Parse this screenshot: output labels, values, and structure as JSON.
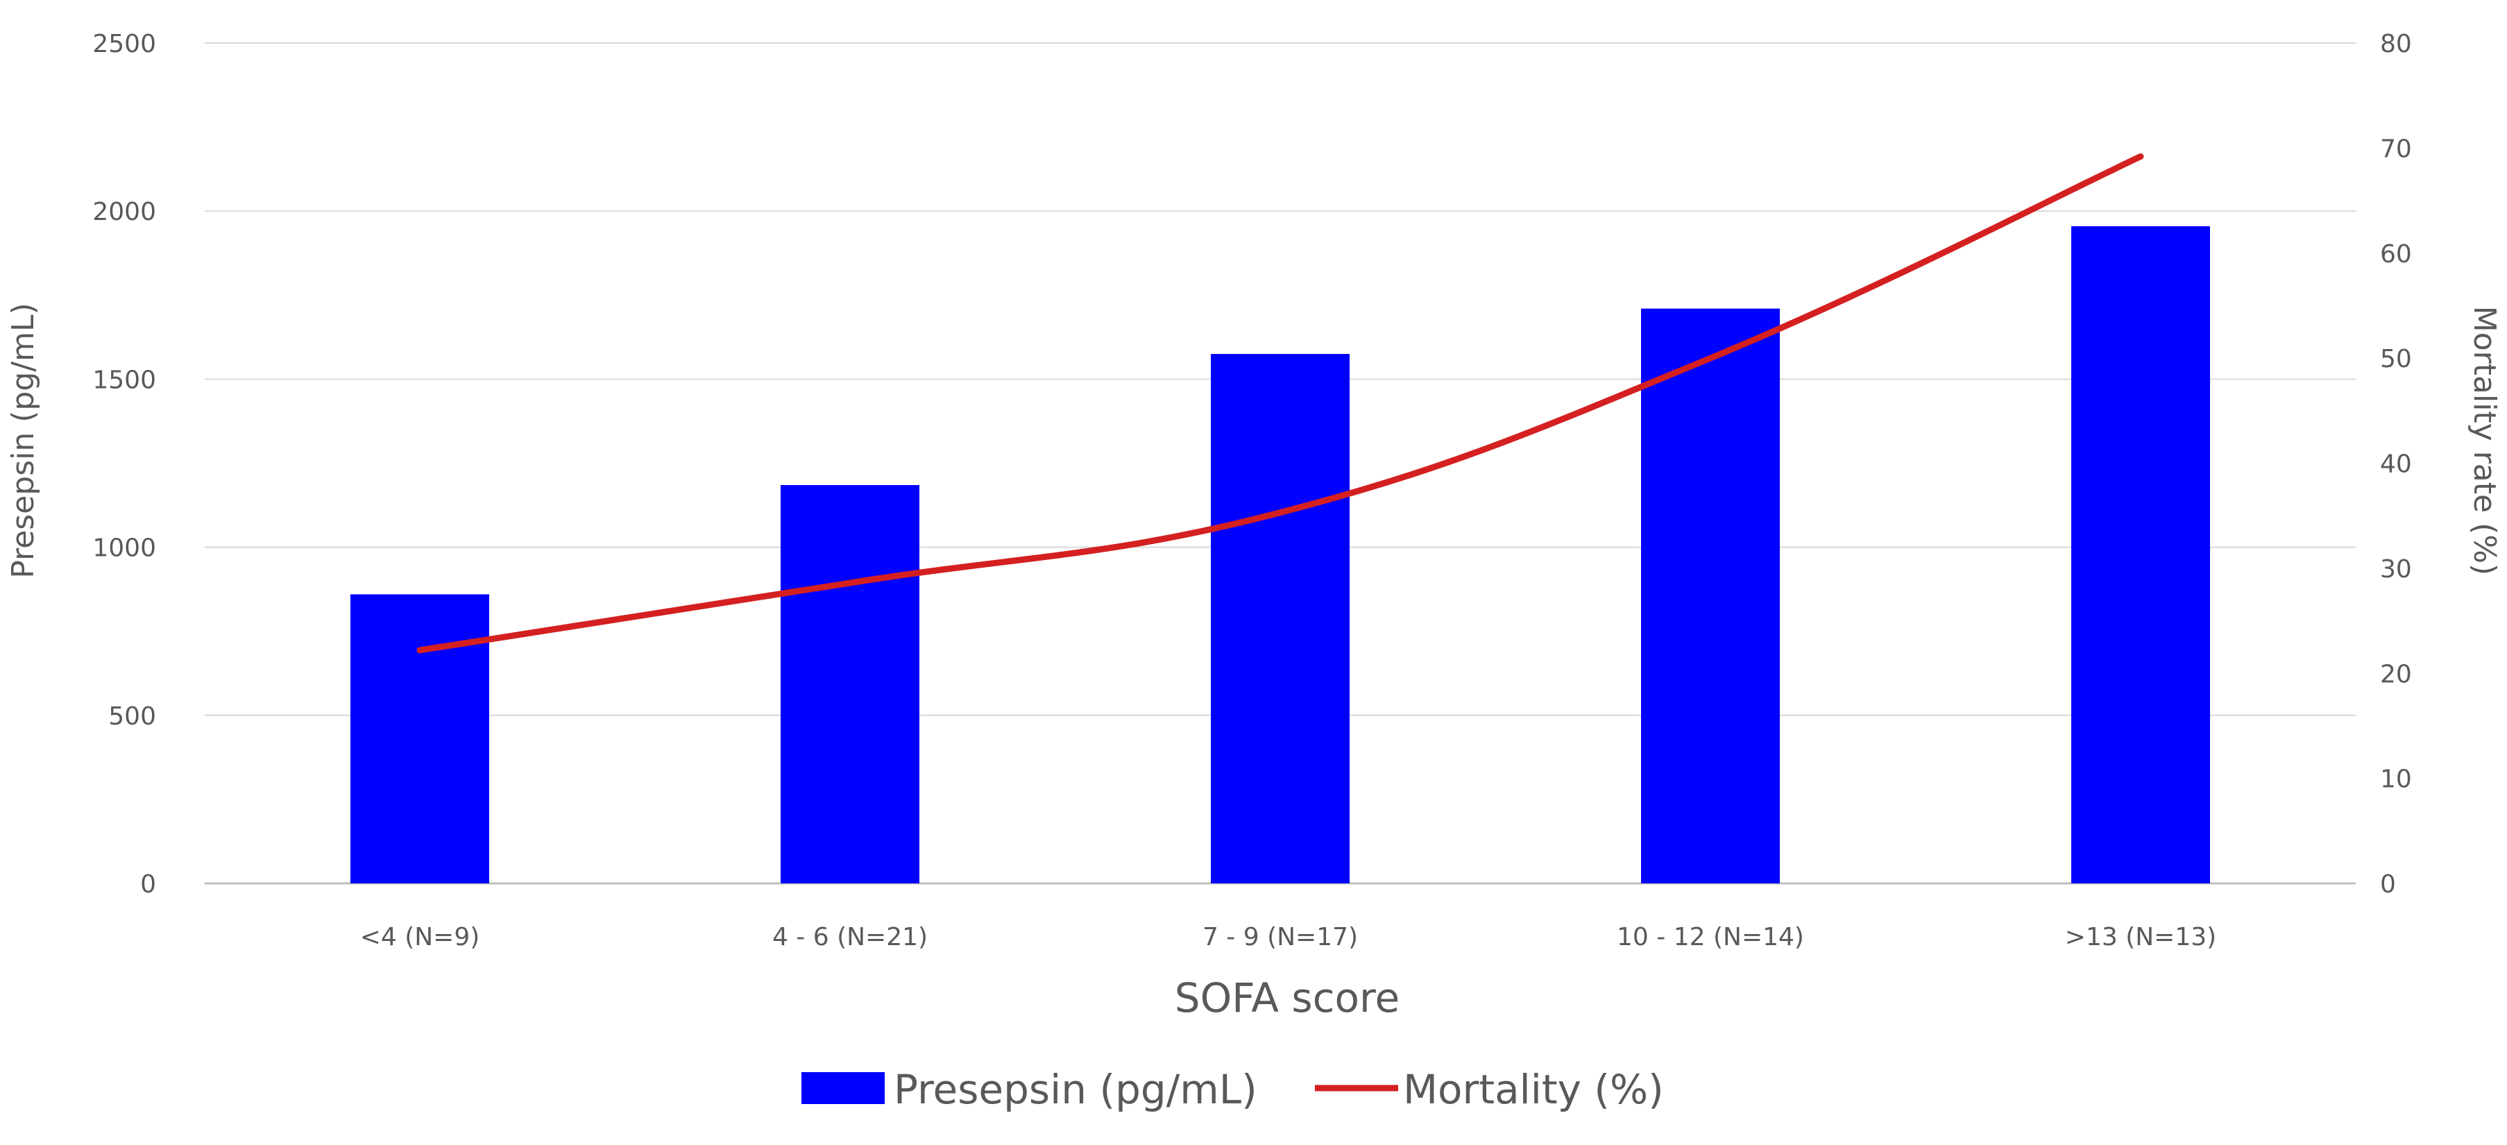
{
  "chart_data": {
    "type": "bar",
    "xlabel": "SOFA score",
    "ylabel": "Presepsin (pg/mL)",
    "y2label": "Mortality rate (%)",
    "categories": [
      "<4 (N=9)",
      "4 - 6 (N=21)",
      "7 - 9 (N=17)",
      "10 - 12 (N=14)",
      ">13 (N=13)"
    ],
    "ylim": [
      0,
      2500
    ],
    "y2lim": [
      0,
      80
    ],
    "yticks": [
      "0",
      "500",
      "1000",
      "1500",
      "2000",
      "2500"
    ],
    "y2ticks": [
      "0",
      "10",
      "20",
      "30",
      "40",
      "50",
      "60",
      "70",
      "80"
    ],
    "grid": true,
    "legend_position": "bottom",
    "series": [
      {
        "name": "Presepsin (pg/mL)",
        "type": "bar",
        "axis": "left",
        "color": "#0000ff",
        "values": [
          860,
          1185,
          1575,
          1710,
          1955
        ]
      },
      {
        "name": "Mortality (%)",
        "type": "line",
        "axis": "right",
        "color": "#d42020",
        "values": [
          22.2,
          28.6,
          35.3,
          50.0,
          69.2
        ]
      }
    ]
  }
}
